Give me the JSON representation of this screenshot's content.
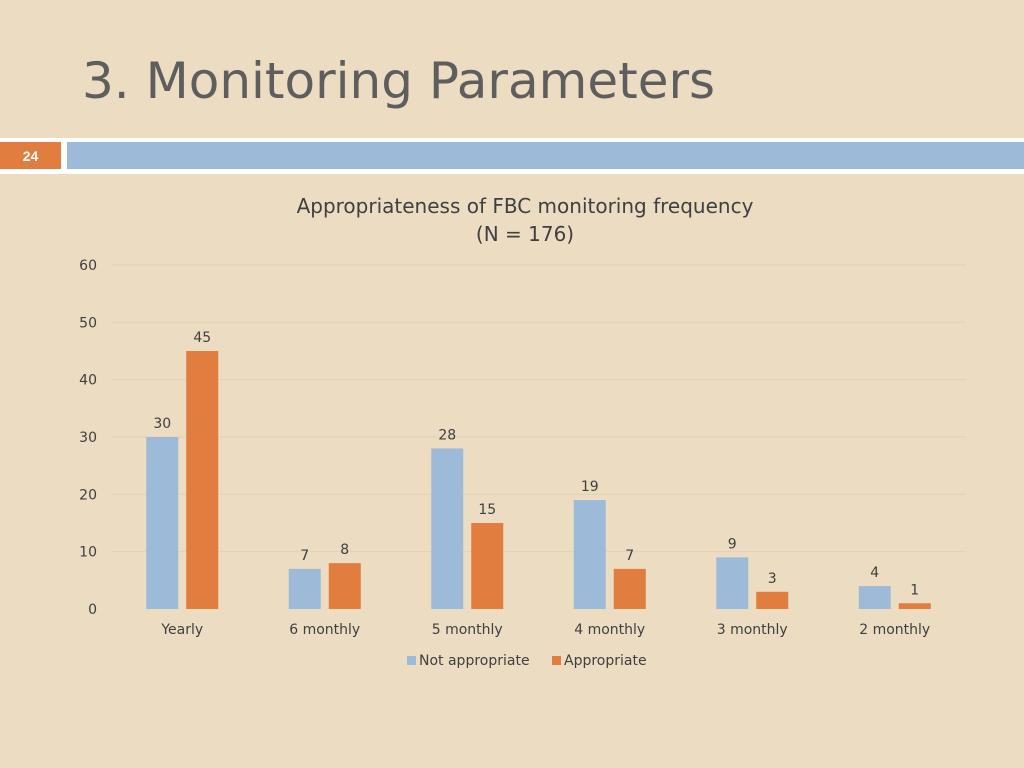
{
  "slide": {
    "title": "3. Monitoring Parameters",
    "page_number": "24"
  },
  "colors": {
    "background": "#ebdcc2",
    "accent_orange": "#e07d3f",
    "accent_blue": "#9dbbd9"
  },
  "chart_data": {
    "type": "bar",
    "title": "Appropriateness of FBC monitoring frequency",
    "subtitle": "(N = 176)",
    "xlabel": "",
    "ylabel": "",
    "ylim": [
      0,
      60
    ],
    "yticks": [
      0,
      10,
      20,
      30,
      40,
      50,
      60
    ],
    "grid": true,
    "legend_position": "bottom",
    "categories": [
      "Yearly",
      "6 monthly",
      "5 monthly",
      "4 monthly",
      "3 monthly",
      "2 monthly"
    ],
    "series": [
      {
        "name": "Not appropriate",
        "color": "#9dbbd9",
        "values": [
          30,
          7,
          28,
          19,
          9,
          4
        ]
      },
      {
        "name": "Appropriate",
        "color": "#e07d3f",
        "values": [
          45,
          8,
          15,
          7,
          3,
          1
        ]
      }
    ]
  }
}
